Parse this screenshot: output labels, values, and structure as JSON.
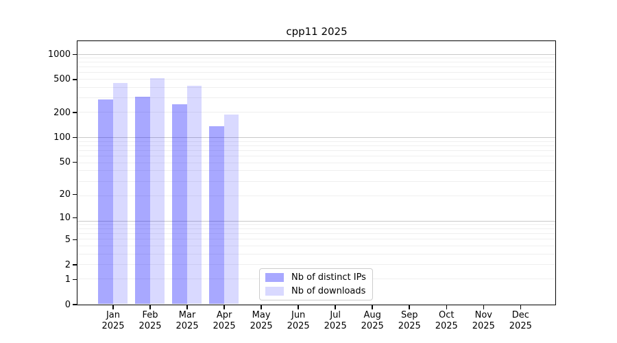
{
  "chart_data": {
    "type": "bar",
    "title": "cpp11 2025",
    "xlabel": "",
    "ylabel": "",
    "categories": [
      "Jan",
      "Feb",
      "Mar",
      "Apr",
      "May",
      "Jun",
      "Jul",
      "Aug",
      "Sep",
      "Oct",
      "Nov",
      "Dec"
    ],
    "category_year": "2025",
    "y_scale": "log10(1+x)",
    "y_ticks": [
      0,
      1,
      2,
      5,
      10,
      20,
      50,
      100,
      200,
      500,
      1000
    ],
    "ylim": [
      0,
      1445
    ],
    "grid": "major and minor log gridlines, horizontal",
    "legend_position": "inside bottom, left of center",
    "series": [
      {
        "name": "Nb of distinct IPs",
        "color": "rgba(0,0,255,0.34)",
        "values": [
          284,
          307,
          250,
          136,
          0,
          0,
          0,
          0,
          0,
          0,
          0,
          0
        ]
      },
      {
        "name": "Nb of downloads",
        "color": "rgba(0,0,255,0.15)",
        "values": [
          449,
          510,
          418,
          187,
          0,
          0,
          0,
          0,
          0,
          0,
          0,
          0
        ]
      }
    ]
  }
}
